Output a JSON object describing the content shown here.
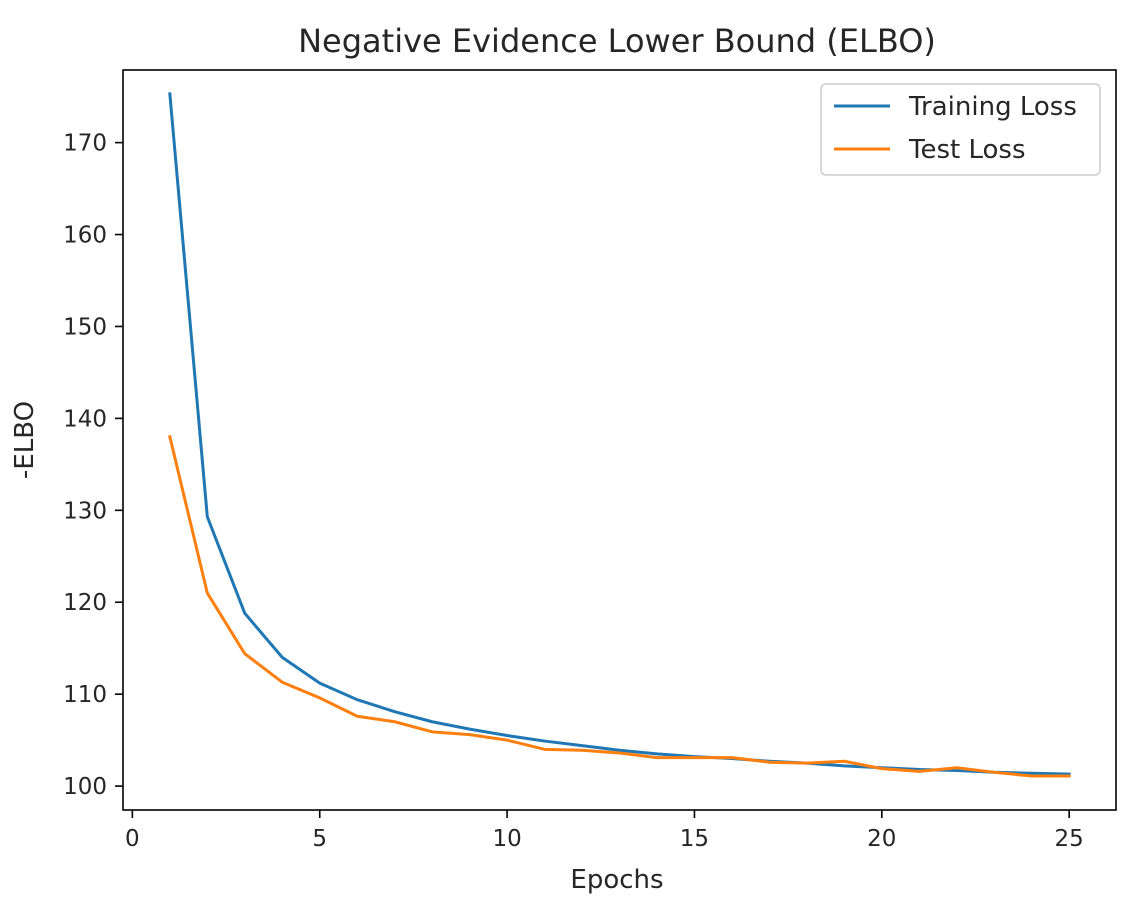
{
  "chart_data": {
    "type": "line",
    "title": "Negative Evidence Lower Bound (ELBO)",
    "xlabel": "Epochs",
    "ylabel": "-ELBO",
    "xlim": [
      -0.25,
      26.25
    ],
    "ylim": [
      97.4,
      177.9
    ],
    "xticks": [
      0,
      5,
      10,
      15,
      20,
      25
    ],
    "yticks": [
      100,
      110,
      120,
      130,
      140,
      150,
      160,
      170
    ],
    "grid": false,
    "legend_position": "top-right",
    "x": [
      1,
      2,
      3,
      4,
      5,
      6,
      7,
      8,
      9,
      10,
      11,
      12,
      13,
      14,
      15,
      16,
      17,
      18,
      19,
      20,
      21,
      22,
      23,
      24,
      25
    ],
    "series": [
      {
        "name": "Training Loss",
        "color": "#1f77b4",
        "values": [
          175.3,
          129.3,
          118.8,
          114.0,
          111.2,
          109.4,
          108.1,
          107.0,
          106.2,
          105.5,
          104.9,
          104.4,
          103.9,
          103.5,
          103.2,
          103.0,
          102.7,
          102.5,
          102.2,
          102.0,
          101.8,
          101.7,
          101.5,
          101.4,
          101.3
        ]
      },
      {
        "name": "Test Loss",
        "color": "#ff7f0e",
        "values": [
          138.0,
          121.0,
          114.4,
          111.3,
          109.6,
          107.6,
          107.0,
          105.9,
          105.6,
          105.0,
          104.0,
          103.9,
          103.6,
          103.1,
          103.1,
          103.1,
          102.6,
          102.5,
          102.7,
          101.9,
          101.6,
          102.0,
          101.5,
          101.1,
          101.1
        ]
      }
    ]
  }
}
